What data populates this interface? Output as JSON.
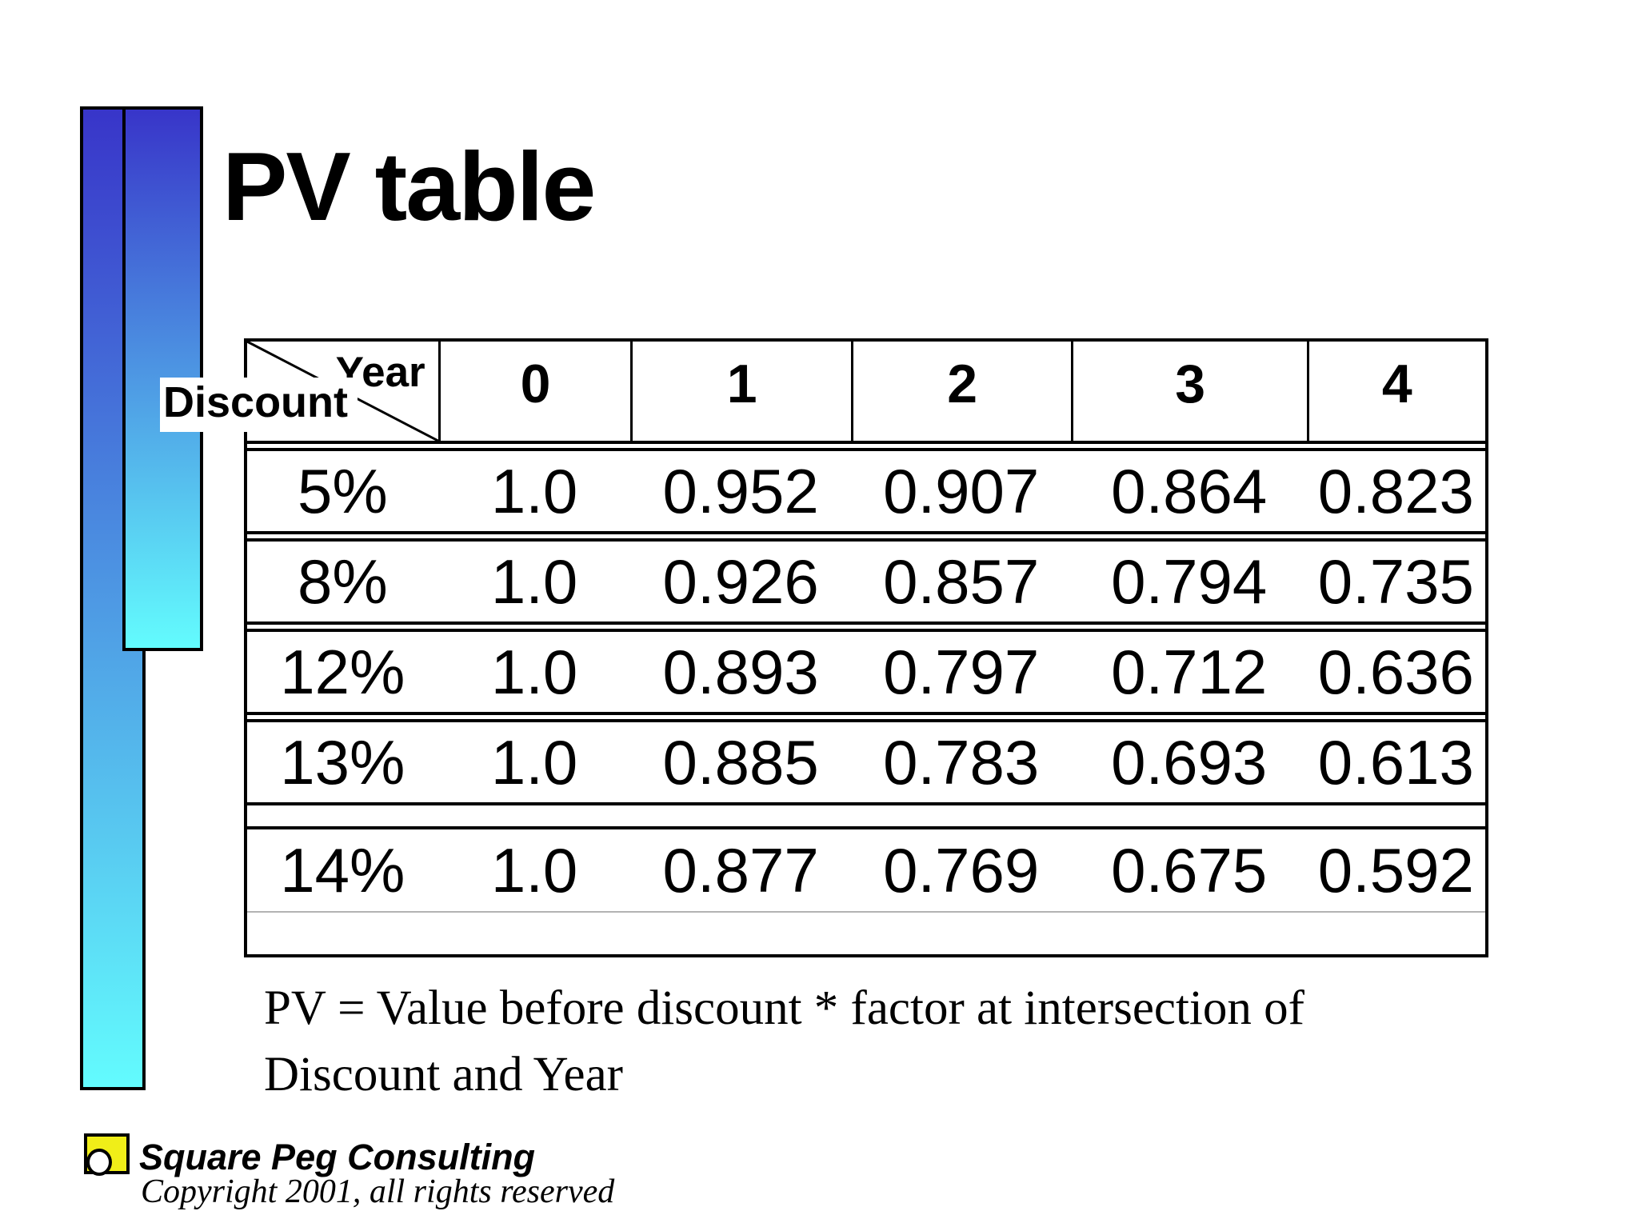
{
  "title": "PV table",
  "table": {
    "corner": {
      "year_label": "Year",
      "discount_label": "Discount"
    },
    "columns": [
      "0",
      "1",
      "2",
      "3",
      "4"
    ],
    "rows": [
      {
        "discount": "5%",
        "values": [
          "1.0",
          "0.952",
          "0.907",
          "0.864",
          "0.823"
        ]
      },
      {
        "discount": "8%",
        "values": [
          "1.0",
          "0.926",
          "0.857",
          "0.794",
          "0.735"
        ]
      },
      {
        "discount": "12%",
        "values": [
          "1.0",
          "0.893",
          "0.797",
          "0.712",
          "0.636"
        ]
      },
      {
        "discount": "13%",
        "values": [
          "1.0",
          "0.885",
          "0.783",
          "0.693",
          "0.613"
        ]
      },
      {
        "discount": "14%",
        "values": [
          "1.0",
          "0.877",
          "0.769",
          "0.675",
          "0.592"
        ]
      }
    ]
  },
  "note": {
    "lines": [
      "PV = Value before discount * factor at intersection of",
      "Discount and Year"
    ]
  },
  "footer": {
    "company": "Square Peg Consulting",
    "copyright": "Copyright 2001, all rights reserved"
  },
  "colors": {
    "gradient_top": "#3835c9",
    "gradient_bottom": "#63fcfe",
    "logo_yellow": "#f0ee18",
    "border_black": "#000000",
    "last_row_line_gray": "#b3b3b3"
  }
}
